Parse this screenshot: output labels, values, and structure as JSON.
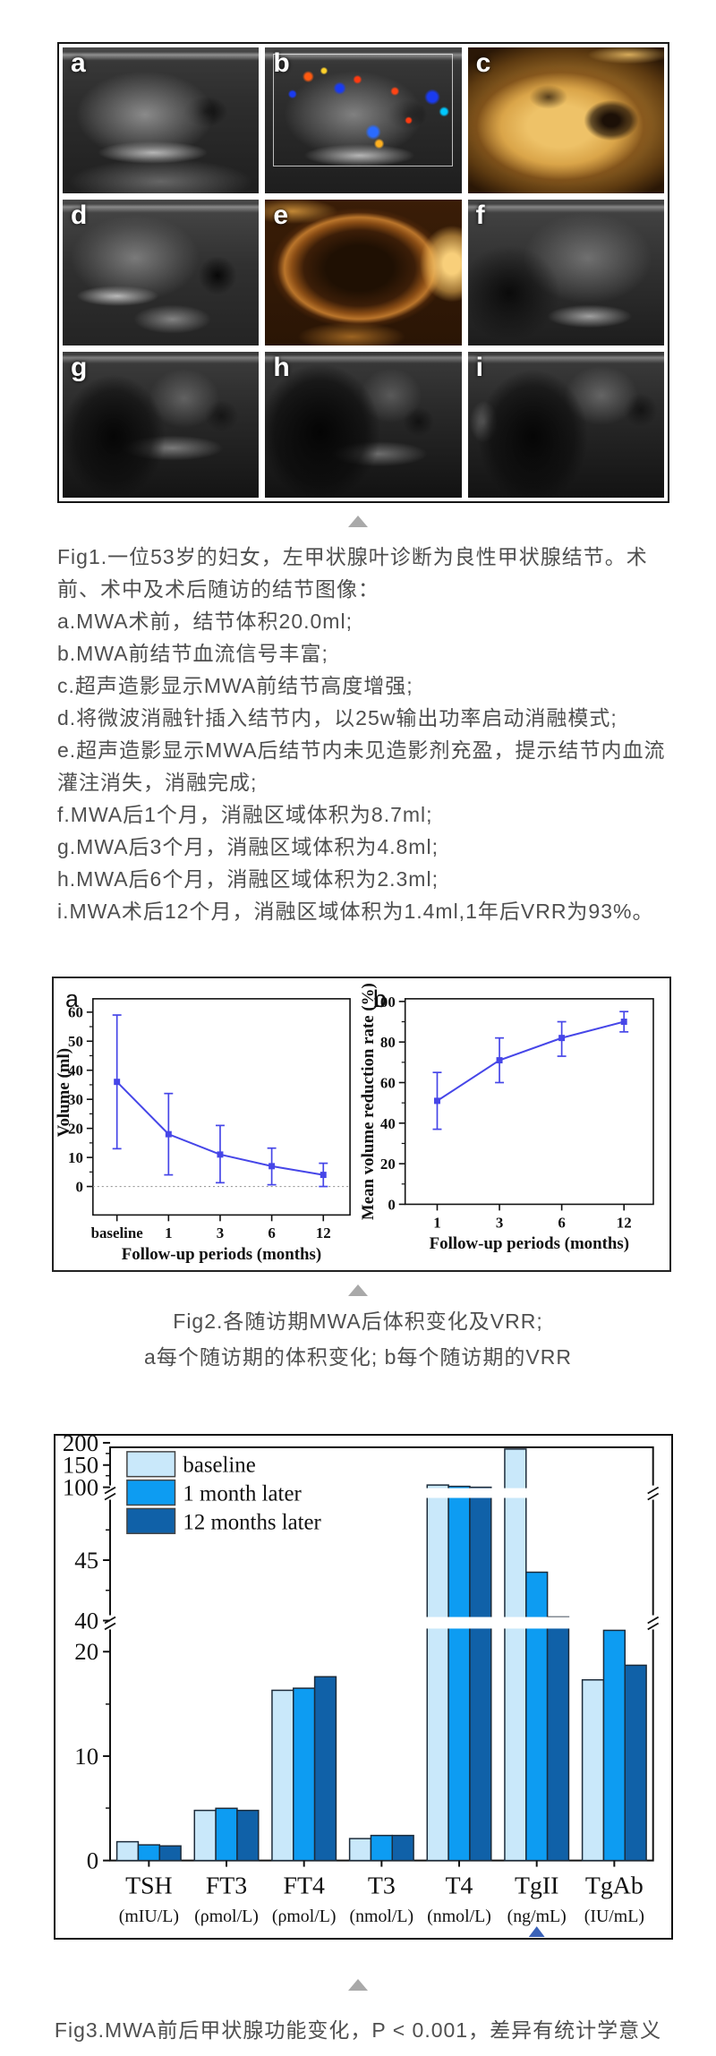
{
  "page": {
    "background": "#ffffff",
    "caption_color": "#4f4f4f"
  },
  "separator_icon": "triangle-up",
  "fig1": {
    "panels": [
      {
        "letter": "a"
      },
      {
        "letter": "b"
      },
      {
        "letter": "c"
      },
      {
        "letter": "d"
      },
      {
        "letter": "e"
      },
      {
        "letter": "f"
      },
      {
        "letter": "g"
      },
      {
        "letter": "h"
      },
      {
        "letter": "i"
      }
    ],
    "caption_lines": [
      "Fig1.一位53岁的妇女，左甲状腺叶诊断为良性甲状腺结节。术",
      "前、术中及术后随访的结节图像：",
      "a.MWA术前，结节体积20.0ml;",
      "b.MWA前结节血流信号丰富;",
      "c.超声造影显示MWA前结节高度增强;",
      "d.将微波消融针插入结节内，以25w输出功率启动消融模式;",
      "e.超声造影显示MWA后结节内未见造影剂充盈，提示结节内血流",
      "灌注消失，消融完成;",
      "f.MWA后1个月，消融区域体积为8.7ml;",
      "g.MWA后3个月，消融区域体积为4.8ml;",
      "h.MWA后6个月，消融区域体积为2.3ml;",
      "i.MWA术后12个月，消融区域体积为1.4ml,1年后VRR为93%。"
    ]
  },
  "fig2": {
    "caption_lines": [
      "Fig2.各随访期MWA后体积变化及VRR;",
      "a每个随访期的体积变化; b每个随访期的VRR"
    ],
    "chart_data": [
      {
        "type": "line",
        "panel_label": "a",
        "x": [
          "baseline",
          "1",
          "3",
          "6",
          "12"
        ],
        "y": [
          36,
          18,
          11,
          7,
          4
        ],
        "y_err_low": [
          13,
          4,
          1.3,
          0.6,
          0
        ],
        "y_err_high": [
          59,
          32,
          21,
          13.2,
          8
        ],
        "xlabel": "Follow-up periods (months)",
        "ylabel": "Volume (ml)",
        "ylim": [
          0,
          60
        ],
        "yticks": [
          0,
          10,
          20,
          30,
          40,
          50,
          60
        ],
        "line_color": "#4646e8",
        "marker": "square",
        "zero_line": "dotted",
        "grid": false
      },
      {
        "type": "line",
        "panel_label": "b",
        "x": [
          "1",
          "3",
          "6",
          "12"
        ],
        "y": [
          51,
          71,
          82,
          90
        ],
        "y_err_low": [
          37,
          60,
          73,
          85
        ],
        "y_err_high": [
          65,
          82,
          90,
          95
        ],
        "xlabel": "Follow-up periods (months)",
        "ylabel": "Mean volume reduction rate (%)",
        "ylim": [
          0,
          100
        ],
        "yticks": [
          0,
          20,
          40,
          60,
          80,
          100
        ],
        "line_color": "#4646e8",
        "marker": "square",
        "grid": false
      }
    ]
  },
  "fig3": {
    "caption": "Fig3.MWA前后甲状腺功能变化，P < 0.001，差异有统计学意义",
    "chart_data": {
      "type": "bar",
      "categories": [
        "TSH",
        "FT3",
        "FT4",
        "T3",
        "T4",
        "TgII",
        "TgAb"
      ],
      "category_units": [
        "(mIU/L)",
        "(ρmol/L)",
        "(ρmol/L)",
        "(nmol/L)",
        "(nmol/L)",
        "(ng/mL)",
        "(IU/mL)"
      ],
      "series": [
        {
          "name": "baseline",
          "color": "#c9e8fa",
          "values": [
            1.8,
            4.8,
            16.3,
            2.1,
            105,
            186,
            17.3
          ]
        },
        {
          "name": "1 month later",
          "color": "#0d9cf2",
          "values": [
            1.5,
            5.0,
            16.5,
            2.4,
            102,
            44,
            28
          ]
        },
        {
          "name": "12 months later",
          "color": "#1061a8",
          "values": [
            1.4,
            4.8,
            17.6,
            2.4,
            100,
            40.3,
            18.7
          ]
        }
      ],
      "broken_y_axis_ticks": [
        [
          0,
          10,
          20
        ],
        [
          40,
          45
        ],
        [
          100,
          150,
          200
        ]
      ],
      "legend_position": "top-left",
      "marked_category": "TgII",
      "marker_color": "#3a62b8",
      "bar_outline_color": "#1c2b3a",
      "grid": false
    }
  }
}
